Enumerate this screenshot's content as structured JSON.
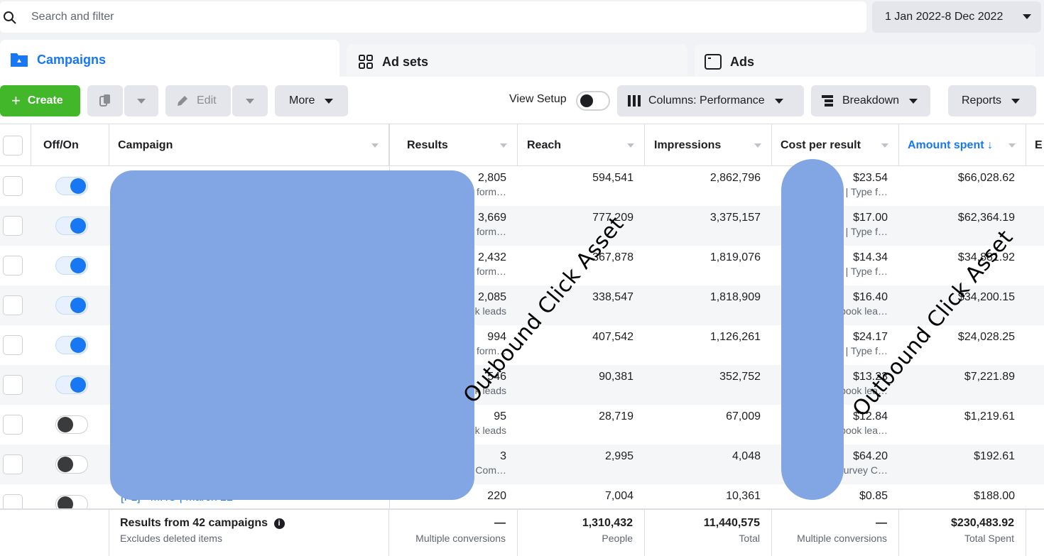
{
  "search": {
    "placeholder": "Search and filter"
  },
  "date_range": "1 Jan 2022-8 Dec 2022",
  "tabs": [
    {
      "label": "Campaigns",
      "icon": "folder-icon"
    },
    {
      "label": "Ad sets",
      "icon": "grid-icon"
    },
    {
      "label": "Ads",
      "icon": "ad-icon"
    }
  ],
  "toolbar": {
    "create": "Create",
    "edit": "Edit",
    "more": "More",
    "view_setup": "View Setup",
    "columns": "Columns: Performance",
    "breakdown": "Breakdown",
    "reports": "Reports"
  },
  "table": {
    "headers": {
      "offon": "Off/On",
      "campaign": "Campaign",
      "results": "Results",
      "reach": "Reach",
      "impressions": "Impressions",
      "cpr": "Cost per result",
      "amount": "Amount spent ↓",
      "next": "E"
    },
    "rows": [
      {
        "on": true,
        "results": "2,805",
        "results_sub": "form…",
        "reach": "594,541",
        "impressions": "2,862,796",
        "cpr": "$23.54",
        "cpr_sub": "| Type f…",
        "amount": "$66,028.62"
      },
      {
        "on": true,
        "results": "3,669",
        "results_sub": "form…",
        "reach": "777,209",
        "impressions": "3,375,157",
        "cpr": "$17.00",
        "cpr_sub": "| Type f…",
        "amount": "$62,364.19"
      },
      {
        "on": true,
        "results": "2,432",
        "results_sub": "form…",
        "reach": "367,878",
        "impressions": "1,819,076",
        "cpr": "$14.34",
        "cpr_sub": "| Type f…",
        "amount": "$34,881.92"
      },
      {
        "on": true,
        "results": "2,085",
        "results_sub": "k leads",
        "reach": "338,547",
        "impressions": "1,818,909",
        "cpr": "$16.40",
        "cpr_sub": "book lea…",
        "amount": "$34,200.15"
      },
      {
        "on": true,
        "results": "994",
        "results_sub": "form…",
        "reach": "407,542",
        "impressions": "1,126,261",
        "cpr": "$24.17",
        "cpr_sub": "| Type f…",
        "amount": "$24,028.25"
      },
      {
        "on": true,
        "results": "546",
        "results_sub": "k leads",
        "reach": "90,381",
        "impressions": "352,752",
        "cpr": "$13.23",
        "cpr_sub": "book lea…",
        "amount": "$7,221.89"
      },
      {
        "on": false,
        "results": "95",
        "results_sub": "k leads",
        "reach": "28,719",
        "impressions": "67,009",
        "cpr": "$12.84",
        "cpr_sub": "book lea…",
        "amount": "$1,219.61"
      },
      {
        "on": false,
        "results": "3",
        "results_sub": "r Com…",
        "reach": "2,995",
        "impressions": "4,048",
        "cpr": "$64.20",
        "cpr_sub": "urvey C…",
        "amount": "$192.61"
      },
      {
        "on": false,
        "results": "220",
        "results_sub": "",
        "reach": "7,004",
        "impressions": "10,361",
        "cpr": "$0.85",
        "cpr_sub": "",
        "amount": "$188.00"
      }
    ],
    "last_campaign_partial": "[FL] - MHC | March 22",
    "footer": {
      "title": "Results from 42 campaigns",
      "subtitle": "Excludes deleted items",
      "results": "—",
      "results_sub": "Multiple conversions",
      "reach": "1,310,432",
      "reach_sub": "People",
      "impressions": "11,440,575",
      "impressions_sub": "Total",
      "cpr": "—",
      "cpr_sub": "Multiple conversions",
      "amount": "$230,483.92",
      "amount_sub": "Total Spent"
    }
  },
  "watermark": "Outbound Click Asset",
  "colors": {
    "primary": "#1877f2",
    "create": "#42b72a",
    "redaction": "#82a5e3"
  }
}
